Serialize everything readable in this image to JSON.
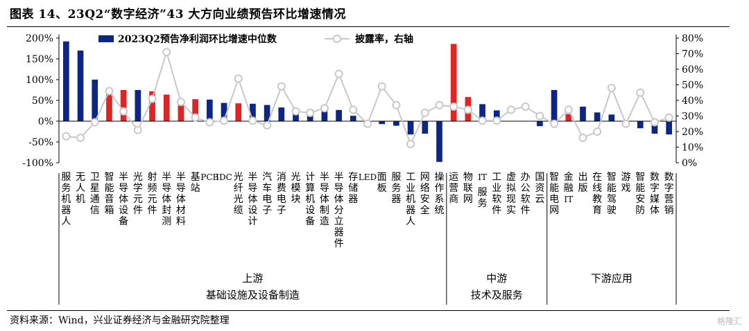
{
  "title": "图表 14、23Q2“数字经济”43 大方向业绩预告环比增速情况",
  "source": "资料来源：Wind，兴业证券经济与金融研究院整理",
  "watermark": "格隆汇",
  "chart_data": {
    "type": "bar",
    "legend": {
      "bar": "2023Q2预告净利润环比增速中位数",
      "line": "披露率，右轴",
      "placement": "top"
    },
    "y_left": {
      "min": -100,
      "max": 200,
      "step": 50,
      "unit": "%",
      "ticks": [
        "-100%",
        "-50%",
        "0%",
        "50%",
        "100%",
        "150%",
        "200%"
      ]
    },
    "y_right": {
      "min": 0,
      "max": 80,
      "step": 10,
      "unit": "%",
      "ticks": [
        "0%",
        "10%",
        "20%",
        "30%",
        "40%",
        "50%",
        "60%",
        "70%",
        "80%"
      ]
    },
    "colors": {
      "navy": "#0e2683",
      "red": "#e02424",
      "line": "#c8c8c8"
    },
    "categories": [
      "服务机器人",
      "无人机",
      "卫星通信",
      "智能音箱",
      "半导体设备",
      "光学元件",
      "射频元件",
      "半导体封测",
      "半导体材料",
      "基站",
      "PCB",
      "IDC",
      "光纤光缆",
      "半导体设计",
      "汽车电子",
      "消费电子",
      "光模块",
      "计算机设备",
      "半导体制造",
      "半导体分立器件",
      "存储器",
      "LED",
      "面板",
      "服务器",
      "工业机器人",
      "网络安全",
      "操作系统",
      "运营商",
      "物联网",
      "IT服务",
      "工业软件",
      "虚拟现实",
      "办公软件",
      "国资云",
      "智能电网",
      "金融IT",
      "出版",
      "在线教育",
      "智能驾驶",
      "游戏",
      "智能安防",
      "数字媒体",
      "数字营销"
    ],
    "values": [
      192,
      170,
      100,
      67,
      75,
      75,
      72,
      64,
      42,
      53,
      52,
      44,
      43,
      42,
      39,
      33,
      28,
      28,
      30,
      27,
      13,
      0,
      -7,
      -11,
      -32,
      -30,
      -98,
      186,
      58,
      41,
      26,
      0,
      0,
      -12,
      75,
      17,
      35,
      21,
      16,
      -12,
      -17,
      -30,
      -32
    ],
    "bar_colors": [
      "navy",
      "navy",
      "navy",
      "red",
      "red",
      "navy",
      "red",
      "red",
      "red",
      "red",
      "navy",
      "navy",
      "red",
      "navy",
      "navy",
      "navy",
      "navy",
      "navy",
      "navy",
      "navy",
      "navy",
      "navy",
      "navy",
      "navy",
      "navy",
      "navy",
      "navy",
      "red",
      "red",
      "navy",
      "navy",
      "navy",
      "navy",
      "navy",
      "navy",
      "red",
      "navy",
      "navy",
      "navy",
      "navy",
      "navy",
      "navy",
      "navy"
    ],
    "disclosure_rate": [
      17,
      16,
      26,
      46,
      33,
      21,
      41,
      71,
      39,
      29,
      26,
      27,
      54,
      27,
      24,
      49,
      33,
      32,
      35,
      57,
      34,
      25,
      49,
      37,
      12,
      32,
      37,
      36,
      34,
      27,
      27,
      34,
      36,
      30,
      25,
      34,
      16,
      20,
      48,
      25,
      45,
      26,
      29
    ],
    "groups": [
      {
        "name": "上游",
        "sub": "基础设施及设备制造",
        "start": 0,
        "end": 26
      },
      {
        "name": "中游",
        "sub": "技术及服务",
        "start": 27,
        "end": 33
      },
      {
        "name": "下游应用",
        "sub": "",
        "start": 34,
        "end": 42
      }
    ]
  }
}
